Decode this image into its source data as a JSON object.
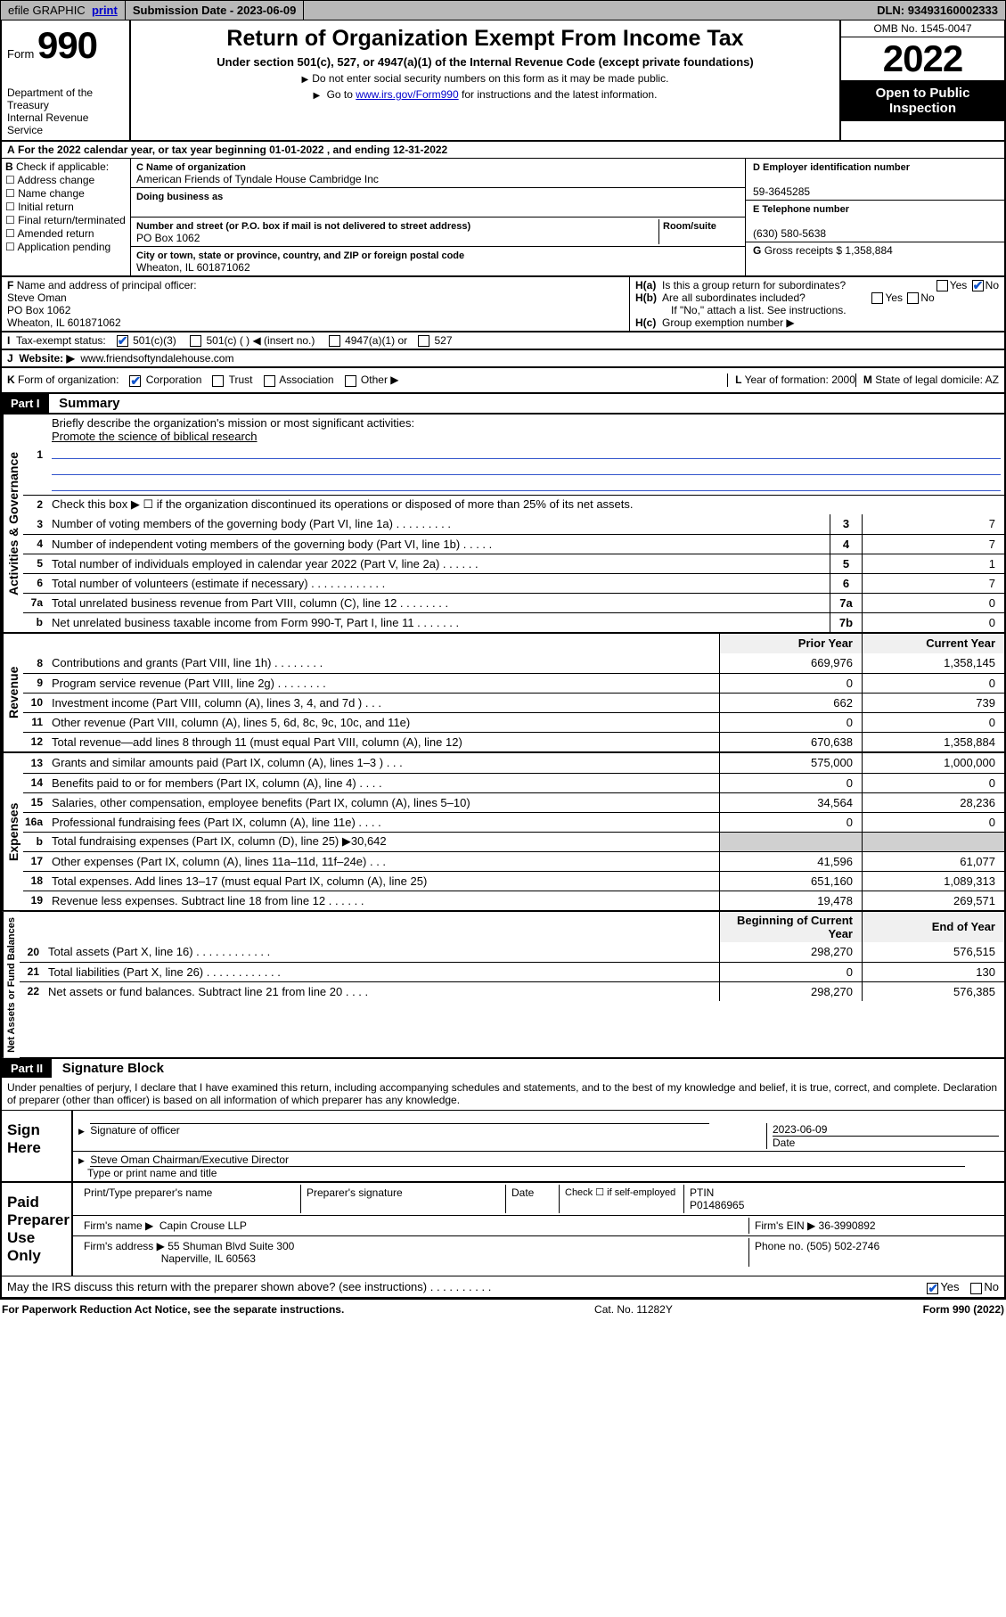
{
  "topbar": {
    "efile": "efile GRAPHIC",
    "print": "print",
    "sub_label": "Submission Date -",
    "sub_date": "2023-06-09",
    "dln_label": "DLN:",
    "dln": "93493160002333"
  },
  "header": {
    "form_word": "Form",
    "form_num": "990",
    "dept": "Department of the Treasury",
    "irs": "Internal Revenue Service",
    "title": "Return of Organization Exempt From Income Tax",
    "subtitle": "Under section 501(c), 527, or 4947(a)(1) of the Internal Revenue Code (except private foundations)",
    "note1": "Do not enter social security numbers on this form as it may be made public.",
    "note2_pre": "Go to ",
    "note2_link": "www.irs.gov/Form990",
    "note2_post": " for instructions and the latest information.",
    "omb": "OMB No. 1545-0047",
    "year": "2022",
    "open": "Open to Public Inspection"
  },
  "A": {
    "text": "For the 2022 calendar year, or tax year beginning 01-01-2022    , and ending 12-31-2022"
  },
  "B": {
    "label": "Check if applicable:",
    "items": [
      "Address change",
      "Name change",
      "Initial return",
      "Final return/terminated",
      "Amended return",
      "Application pending"
    ]
  },
  "C": {
    "name_label": "Name of organization",
    "name": "American Friends of Tyndale House Cambridge Inc",
    "dba_label": "Doing business as",
    "dba": "",
    "street_label": "Number and street (or P.O. box if mail is not delivered to street address)",
    "room_label": "Room/suite",
    "street": "PO Box 1062",
    "city_label": "City or town, state or province, country, and ZIP or foreign postal code",
    "city": "Wheaton, IL  601871062"
  },
  "D": {
    "label": "Employer identification number",
    "val": "59-3645285"
  },
  "E": {
    "label": "Telephone number",
    "val": "(630) 580-5638"
  },
  "G": {
    "label": "Gross receipts $",
    "val": "1,358,884"
  },
  "F": {
    "label": "Name and address of principal officer:",
    "name": "Steve Oman",
    "street": "PO Box 1062",
    "city": "Wheaton, IL  601871062"
  },
  "H": {
    "a": "Is this a group return for subordinates?",
    "b": "Are all subordinates included?",
    "b_note": "If \"No,\" attach a list. See instructions.",
    "c": "Group exemption number ▶",
    "yes": "Yes",
    "no": "No"
  },
  "I": {
    "label": "Tax-exempt status:",
    "opts": [
      "501(c)(3)",
      "501(c) (  ) ◀ (insert no.)",
      "4947(a)(1) or",
      "527"
    ]
  },
  "J": {
    "label": "Website: ▶",
    "val": "www.friendsoftyndalehouse.com"
  },
  "K": {
    "label": "Form of organization:",
    "opts": [
      "Corporation",
      "Trust",
      "Association",
      "Other ▶"
    ]
  },
  "L": {
    "label": "Year of formation:",
    "val": "2000"
  },
  "M": {
    "label": "State of legal domicile:",
    "val": "AZ"
  },
  "part1": {
    "hdr": "Part I",
    "title": "Summary"
  },
  "sum": {
    "l1_label": "Briefly describe the organization's mission or most significant activities:",
    "l1_val": "Promote the science of biblical research",
    "l2": "Check this box ▶ ☐  if the organization discontinued its operations or disposed of more than 25% of its net assets.",
    "rows_gov": [
      {
        "n": "3",
        "d": "Number of voting members of the governing body (Part VI, line 1a)   .     .     .     .     .     .     .     .     .",
        "box": "3",
        "v": "7"
      },
      {
        "n": "4",
        "d": "Number of independent voting members of the governing body (Part VI, line 1b)   .     .     .     .     .",
        "box": "4",
        "v": "7"
      },
      {
        "n": "5",
        "d": "Total number of individuals employed in calendar year 2022 (Part V, line 2a)   .     .     .     .     .     .",
        "box": "5",
        "v": "1"
      },
      {
        "n": "6",
        "d": "Total number of volunteers (estimate if necessary)   .     .     .     .     .     .     .     .     .     .     .     .",
        "box": "6",
        "v": "7"
      },
      {
        "n": "7a",
        "d": "Total unrelated business revenue from Part VIII, column (C), line 12   .     .     .     .     .     .     .     .",
        "box": "7a",
        "v": "0"
      },
      {
        "n": "b",
        "d": "Net unrelated business taxable income from Form 990-T, Part I, line 11   .     .     .     .     .     .     .",
        "box": "7b",
        "v": "0"
      }
    ],
    "col_prior": "Prior Year",
    "col_curr": "Current Year",
    "rows_rev": [
      {
        "n": "8",
        "d": "Contributions and grants (Part VIII, line 1h)    .     .     .     .     .     .     .     .",
        "p": "669,976",
        "c": "1,358,145"
      },
      {
        "n": "9",
        "d": "Program service revenue (Part VIII, line 2g)    .     .     .     .     .     .     .     .",
        "p": "0",
        "c": "0"
      },
      {
        "n": "10",
        "d": "Investment income (Part VIII, column (A), lines 3, 4, and 7d )    .     .     .",
        "p": "662",
        "c": "739"
      },
      {
        "n": "11",
        "d": "Other revenue (Part VIII, column (A), lines 5, 6d, 8c, 9c, 10c, and 11e)",
        "p": "0",
        "c": "0"
      },
      {
        "n": "12",
        "d": "Total revenue—add lines 8 through 11 (must equal Part VIII, column (A), line 12)",
        "p": "670,638",
        "c": "1,358,884"
      }
    ],
    "rows_exp": [
      {
        "n": "13",
        "d": "Grants and similar amounts paid (Part IX, column (A), lines 1–3 )    .     .     .",
        "p": "575,000",
        "c": "1,000,000"
      },
      {
        "n": "14",
        "d": "Benefits paid to or for members (Part IX, column (A), line 4)    .     .     .     .",
        "p": "0",
        "c": "0"
      },
      {
        "n": "15",
        "d": "Salaries, other compensation, employee benefits (Part IX, column (A), lines 5–10)",
        "p": "34,564",
        "c": "28,236"
      },
      {
        "n": "16a",
        "d": "Professional fundraising fees (Part IX, column (A), line 11e)    .     .     .     .",
        "p": "0",
        "c": "0"
      },
      {
        "n": "b",
        "d": "Total fundraising expenses (Part IX, column (D), line 25) ▶30,642",
        "p": "",
        "c": "",
        "shade": true
      },
      {
        "n": "17",
        "d": "Other expenses (Part IX, column (A), lines 11a–11d, 11f–24e)    .     .     .",
        "p": "41,596",
        "c": "61,077"
      },
      {
        "n": "18",
        "d": "Total expenses. Add lines 13–17 (must equal Part IX, column (A), line 25)",
        "p": "651,160",
        "c": "1,089,313"
      },
      {
        "n": "19",
        "d": "Revenue less expenses. Subtract line 18 from line 12    .     .     .     .     .     .",
        "p": "19,478",
        "c": "269,571"
      }
    ],
    "col_begin": "Beginning of Current Year",
    "col_end": "End of Year",
    "rows_net": [
      {
        "n": "20",
        "d": "Total assets (Part X, line 16)    .     .     .     .     .     .     .     .     .     .     .     .",
        "p": "298,270",
        "c": "576,515"
      },
      {
        "n": "21",
        "d": "Total liabilities (Part X, line 26)    .     .     .     .     .     .     .     .     .     .     .     .",
        "p": "0",
        "c": "130"
      },
      {
        "n": "22",
        "d": "Net assets or fund balances. Subtract line 21 from line 20    .     .     .     .",
        "p": "298,270",
        "c": "576,385"
      }
    ]
  },
  "vlabels": {
    "gov": "Activities & Governance",
    "rev": "Revenue",
    "exp": "Expenses",
    "net": "Net Assets or Fund Balances"
  },
  "part2": {
    "hdr": "Part II",
    "title": "Signature Block"
  },
  "sig": {
    "decl": "Under penalties of perjury, I declare that I have examined this return, including accompanying schedules and statements, and to the best of my knowledge and belief, it is true, correct, and complete. Declaration of preparer (other than officer) is based on all information of which preparer has any knowledge.",
    "sign_here": "Sign Here",
    "sig_officer": "Signature of officer",
    "date_label": "Date",
    "date": "2023-06-09",
    "officer_name": "Steve Oman  Chairman/Executive Director",
    "type_name": "Type or print name and title",
    "paid": "Paid Preparer Use Only",
    "prep_name_label": "Print/Type preparer's name",
    "prep_sig_label": "Preparer's signature",
    "check_self": "Check ☐ if self-employed",
    "ptin_label": "PTIN",
    "ptin": "P01486965",
    "firm_name_label": "Firm's name    ▶",
    "firm_name": "Capin Crouse LLP",
    "firm_ein_label": "Firm's EIN ▶",
    "firm_ein": "36-3990892",
    "firm_addr_label": "Firm's address ▶",
    "firm_addr1": "55 Shuman Blvd Suite 300",
    "firm_addr2": "Naperville, IL  60563",
    "phone_label": "Phone no.",
    "phone": "(505) 502-2746",
    "discuss": "May the IRS discuss this return with the preparer shown above? (see instructions)    .     .     .     .     .     .     .     .     .     .",
    "yes": "Yes",
    "no": "No"
  },
  "foot": {
    "left": "For Paperwork Reduction Act Notice, see the separate instructions.",
    "mid": "Cat. No. 11282Y",
    "right": "Form 990 (2022)"
  }
}
